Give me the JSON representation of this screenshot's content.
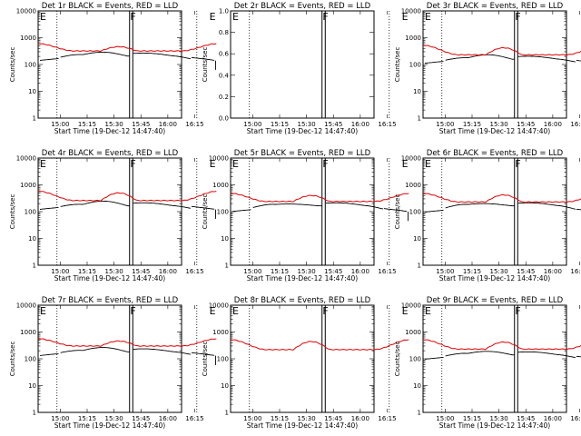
{
  "panels": [
    {
      "title": "Det 1r BLACK = Events, RED = LLD",
      "ylabel": "Counts/sec",
      "xlabel": "Start Time (19-Dec-12 14:47:40)",
      "log": true,
      "ytick_labels": [
        "1",
        "10",
        "100",
        "1000",
        "10000"
      ],
      "flags": [
        "E",
        "F",
        "E"
      ],
      "red": {
        "edge": 600,
        "low": 320,
        "mid": 460
      },
      "black": {
        "edge": 140,
        "low": 250,
        "mid": 350
      }
    },
    {
      "title": "Det 2r BLACK = Events, RED = LLD",
      "ylabel": "Counts/sec",
      "xlabel": "Start Time (19-Dec-12 14:47:40)",
      "log": false,
      "ytick_labels": [
        "1.0",
        "0.8",
        "0.6",
        "0.4",
        "0.2",
        "0.0"
      ],
      "flags": [
        "E",
        "F",
        "E"
      ],
      "red": null,
      "black": null
    },
    {
      "title": "Det 3r BLACK = Events, RED = LLD",
      "ylabel": "Counts/sec",
      "xlabel": "Start Time (19-Dec-12 14:47:40)",
      "log": true,
      "ytick_labels": [
        "1",
        "10",
        "100",
        "1000",
        "10000"
      ],
      "flags": [
        "E",
        "F",
        "E"
      ],
      "red": {
        "edge": 520,
        "low": 230,
        "mid": 420
      },
      "black": {
        "edge": 110,
        "low": 190,
        "mid": 280
      }
    },
    {
      "title": "Det 4r BLACK = Events, RED = LLD",
      "ylabel": "Counts/sec",
      "xlabel": "Start Time (19-Dec-12 14:47:40)",
      "log": true,
      "ytick_labels": [
        "1",
        "10",
        "100",
        "1000",
        "10000"
      ],
      "flags": [
        "E",
        "F",
        "E"
      ],
      "red": {
        "edge": 580,
        "low": 260,
        "mid": 500
      },
      "black": {
        "edge": 120,
        "low": 200,
        "mid": 300
      }
    },
    {
      "title": "Det 5r BLACK = Events, RED = LLD",
      "ylabel": "Counts/sec",
      "xlabel": "Start Time (19-Dec-12 14:47:40)",
      "log": true,
      "ytick_labels": [
        "1",
        "10",
        "100",
        "1000",
        "10000"
      ],
      "flags": [
        "E",
        "F",
        "E"
      ],
      "red": {
        "edge": 480,
        "low": 240,
        "mid": 400
      },
      "black": {
        "edge": 100,
        "low": 200,
        "mid": 230
      }
    },
    {
      "title": "Det 6r BLACK = Events, RED = LLD",
      "ylabel": "Counts/sec",
      "xlabel": "Start Time (19-Dec-12 14:47:40)",
      "log": true,
      "ytick_labels": [
        "1",
        "10",
        "100",
        "1000",
        "10000"
      ],
      "flags": [
        "E",
        "F",
        "E"
      ],
      "red": {
        "edge": 480,
        "low": 230,
        "mid": 420
      },
      "black": {
        "edge": 95,
        "low": 200,
        "mid": 240
      }
    },
    {
      "title": "Det 7r BLACK = Events, RED = LLD",
      "ylabel": "Counts/sec",
      "xlabel": "Start Time (19-Dec-12 14:47:40)",
      "log": true,
      "ytick_labels": [
        "1",
        "10",
        "100",
        "1000",
        "10000"
      ],
      "flags": [
        "E",
        "F",
        "E"
      ],
      "red": {
        "edge": 560,
        "low": 300,
        "mid": 460
      },
      "black": {
        "edge": 130,
        "low": 220,
        "mid": 320
      }
    },
    {
      "title": "Det 8r BLACK = Events, RED = LLD",
      "ylabel": "Counts/sec",
      "xlabel": "Start Time (19-Dec-12 14:47:40)",
      "log": true,
      "ytick_labels": [
        "1",
        "10",
        "100",
        "1000",
        "10000"
      ],
      "flags": [
        "E",
        "F",
        "E"
      ],
      "red": {
        "edge": 520,
        "low": 220,
        "mid": 440
      },
      "black": null
    },
    {
      "title": "Det 9r BLACK = Events, RED = LLD",
      "ylabel": "Counts/sec",
      "xlabel": "Start Time (19-Dec-12 14:47:40)",
      "log": true,
      "ytick_labels": [
        "1",
        "10",
        "100",
        "1000",
        "10000"
      ],
      "flags": [
        "E",
        "F",
        "E"
      ],
      "red": {
        "edge": 520,
        "low": 230,
        "mid": 420
      },
      "black": {
        "edge": 95,
        "low": 170,
        "mid": 230
      }
    }
  ],
  "chart_data": {
    "type": "line",
    "layout": "3x3 grid",
    "x_tick_labels": [
      "15:00",
      "15:15",
      "15:30",
      "15:45",
      "16:00",
      "16:15"
    ],
    "x_range_minutes_from_start": [
      0,
      100
    ],
    "y_scale": "log",
    "y_range": [
      1,
      10000
    ],
    "series_colors": {
      "events": "#000000",
      "lld": "#e00000"
    },
    "legend": "in titles",
    "dotted_vertical_markers": true
  }
}
